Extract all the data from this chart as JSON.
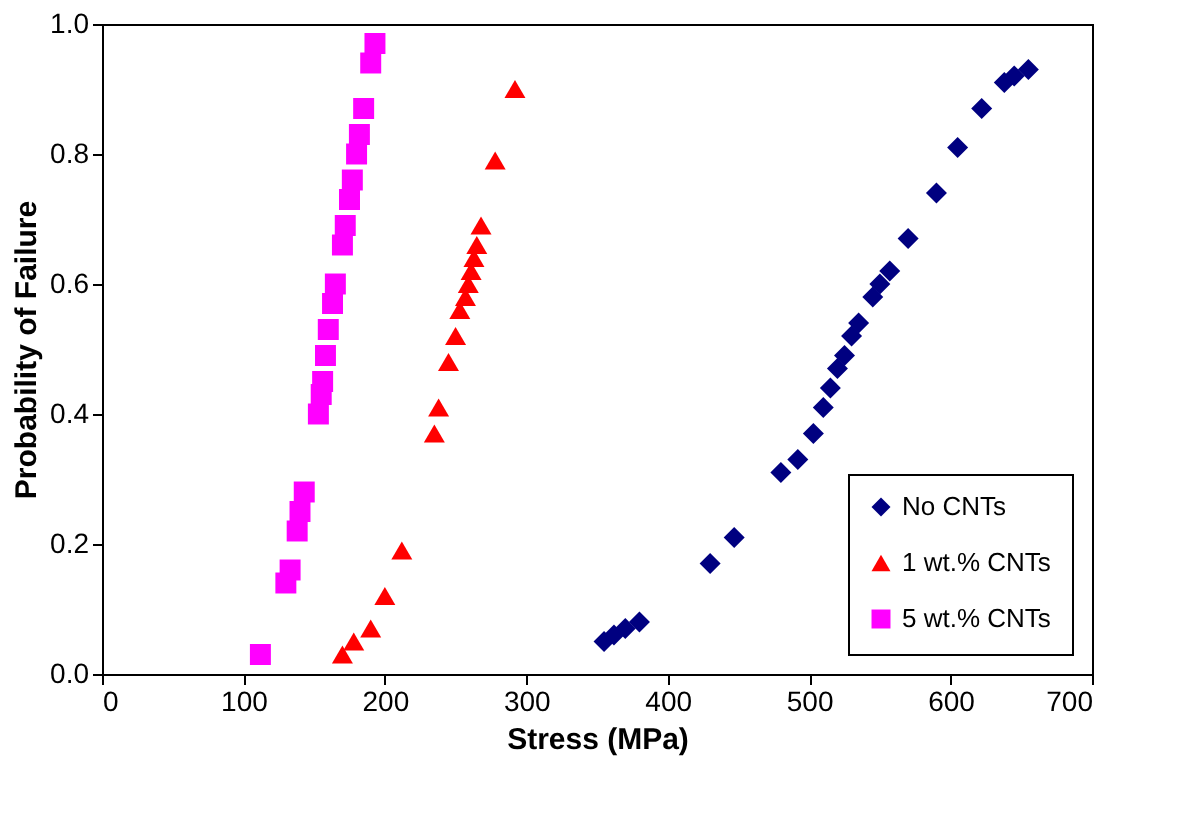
{
  "chart_data": {
    "type": "scatter",
    "xlabel": "Stress (MPa)",
    "ylabel": "Probability of Failure",
    "xlim": [
      0,
      700
    ],
    "xticks": [
      0,
      100,
      200,
      300,
      400,
      500,
      600,
      700
    ],
    "ylim": [
      0,
      1
    ],
    "yticks": [
      {
        "value": 0,
        "label": "0.0"
      },
      0.2,
      0.4,
      0.6,
      0.8,
      {
        "value": 1,
        "label": "1.0"
      }
    ],
    "grid": false,
    "legend": "bottom right",
    "series": [
      {
        "name": "No CNTs",
        "color": "#000080",
        "marker": "diamond",
        "x": [
          355,
          362,
          370,
          380,
          430,
          447,
          480,
          492,
          503,
          510,
          515,
          520,
          525,
          530,
          535,
          545,
          550,
          557,
          570,
          590,
          605,
          622,
          638,
          645,
          655
        ],
        "values": [
          0.05,
          0.06,
          0.07,
          0.08,
          0.17,
          0.21,
          0.31,
          0.33,
          0.37,
          0.41,
          0.44,
          0.47,
          0.49,
          0.52,
          0.54,
          0.58,
          0.6,
          0.62,
          0.67,
          0.74,
          0.81,
          0.87,
          0.91,
          0.92,
          0.93
        ]
      },
      {
        "name": "1 wt.% CNTs",
        "color": "#ff0000",
        "marker": "triangle",
        "x": [
          170,
          178,
          190,
          200,
          212,
          235,
          238,
          245,
          250,
          253,
          257,
          259,
          261,
          263,
          265,
          268,
          278,
          292
        ],
        "values": [
          0.03,
          0.05,
          0.07,
          0.12,
          0.19,
          0.37,
          0.41,
          0.48,
          0.52,
          0.56,
          0.58,
          0.6,
          0.62,
          0.64,
          0.66,
          0.69,
          0.79,
          0.9
        ]
      },
      {
        "name": "5 wt.% CNTs",
        "color": "#ff00ff",
        "marker": "square",
        "x": [
          112,
          130,
          133,
          138,
          140,
          143,
          153,
          155,
          156,
          158,
          160,
          163,
          165,
          170,
          172,
          175,
          177,
          180,
          182,
          185,
          190,
          193
        ],
        "values": [
          0.03,
          0.14,
          0.16,
          0.22,
          0.25,
          0.28,
          0.4,
          0.43,
          0.45,
          0.49,
          0.53,
          0.57,
          0.6,
          0.66,
          0.69,
          0.73,
          0.76,
          0.8,
          0.83,
          0.87,
          0.94,
          0.97
        ]
      }
    ]
  }
}
